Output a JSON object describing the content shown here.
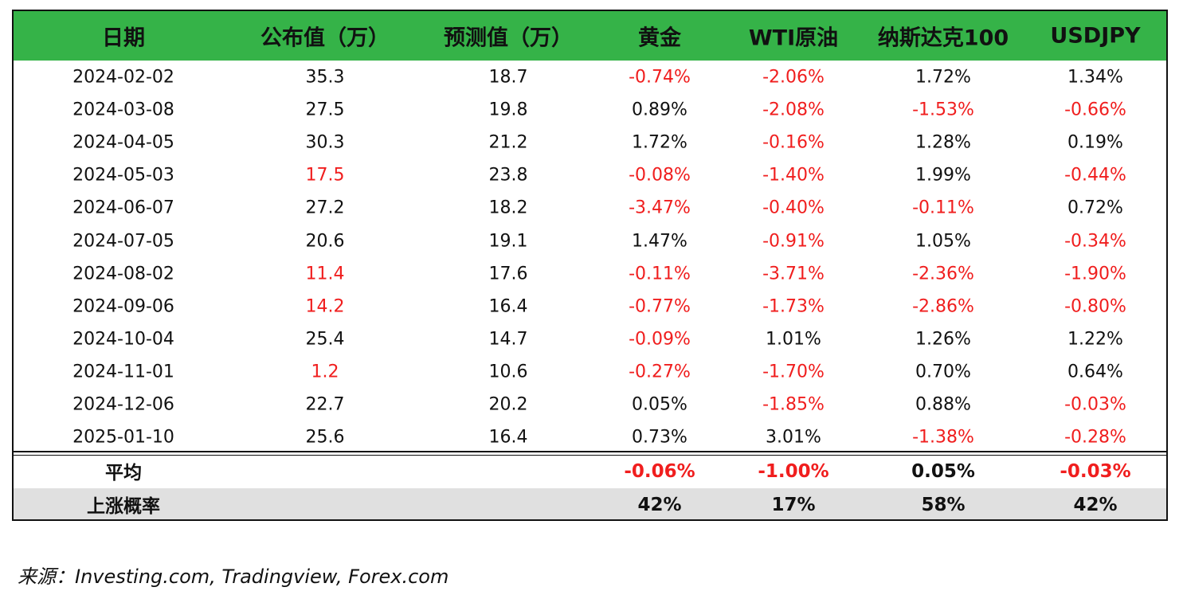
{
  "table": {
    "header": [
      "日期",
      "公布值（万）",
      "预测值（万）",
      "黄金",
      "WTI原油",
      "纳斯达克100",
      "USDJPY"
    ],
    "rows": [
      [
        "2024-02-02",
        "35.3",
        "18.7",
        "-0.74%",
        "-2.06%",
        "1.72%",
        "1.34%"
      ],
      [
        "2024-03-08",
        "27.5",
        "19.8",
        "0.89%",
        "-2.08%",
        "-1.53%",
        "-0.66%"
      ],
      [
        "2024-04-05",
        "30.3",
        "21.2",
        "1.72%",
        "-0.16%",
        "1.28%",
        "0.19%"
      ],
      [
        "2024-05-03",
        "17.5",
        "23.8",
        "-0.08%",
        "-1.40%",
        "1.99%",
        "-0.44%"
      ],
      [
        "2024-06-07",
        "27.2",
        "18.2",
        "-3.47%",
        "-0.40%",
        "-0.11%",
        "0.72%"
      ],
      [
        "2024-07-05",
        "20.6",
        "19.1",
        "1.47%",
        "-0.91%",
        "1.05%",
        "-0.34%"
      ],
      [
        "2024-08-02",
        "11.4",
        "17.6",
        "-0.11%",
        "-3.71%",
        "-2.36%",
        "-1.90%"
      ],
      [
        "2024-09-06",
        "14.2",
        "16.4",
        "-0.77%",
        "-1.73%",
        "-2.86%",
        "-0.80%"
      ],
      [
        "2024-10-04",
        "25.4",
        "14.7",
        "-0.09%",
        "1.01%",
        "1.26%",
        "1.22%"
      ],
      [
        "2024-11-01",
        "1.2",
        "10.6",
        "-0.27%",
        "-1.70%",
        "0.70%",
        "0.64%"
      ],
      [
        "2024-12-06",
        "22.7",
        "20.2",
        "0.05%",
        "-1.85%",
        "0.88%",
        "-0.03%"
      ],
      [
        "2025-01-10",
        "25.6",
        "16.4",
        "0.73%",
        "3.01%",
        "-1.38%",
        "-0.28%"
      ]
    ],
    "average": {
      "label": "平均",
      "values": [
        "-0.06%",
        "-1.00%",
        "0.05%",
        "-0.03%"
      ]
    },
    "up_ratio": {
      "label": "上涨概率",
      "values": [
        "42%",
        "17%",
        "58%",
        "42%"
      ]
    }
  },
  "source": "来源：Investing.com, Tradingview, Forex.com"
}
